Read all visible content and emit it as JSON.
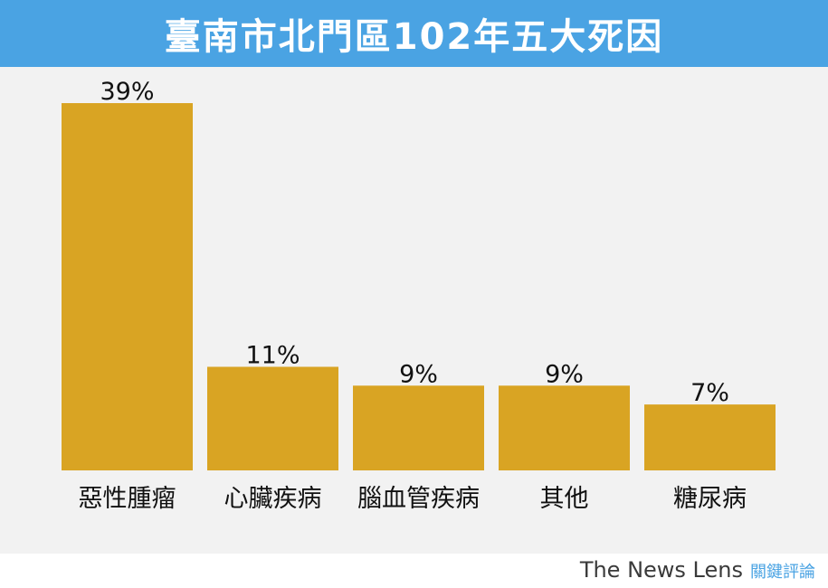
{
  "header": {
    "title": "臺南市北門區102年五大死因"
  },
  "brand": {
    "name_en": "The News Lens",
    "name_zh": "關鍵評論"
  },
  "colors": {
    "header": "#4aa3e3",
    "bar": "#d9a423",
    "plot_bg": "#f2f2f2",
    "text": "#111111"
  },
  "chart_data": {
    "type": "bar",
    "title": "臺南市北門區102年五大死因",
    "categories": [
      "惡性腫瘤",
      "心臟疾病",
      "腦血管疾病",
      "其他",
      "糖尿病"
    ],
    "values": [
      39,
      11,
      9,
      9,
      7
    ],
    "value_labels": [
      "39%",
      "11%",
      "9%",
      "9%",
      "7%"
    ],
    "unit": "%",
    "xlabel": "",
    "ylabel": "",
    "ylim": [
      0,
      39
    ],
    "grid": false,
    "legend": "none"
  }
}
